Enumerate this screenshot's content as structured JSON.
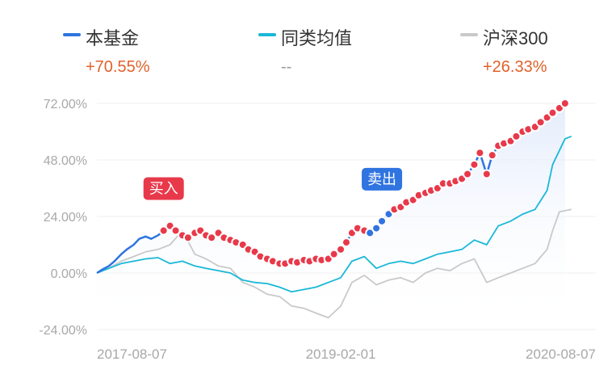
{
  "legend": {
    "fund": {
      "name": "本基金",
      "value": "+70.55%",
      "color": "#2f74e0"
    },
    "category_avg": {
      "name": "同类均值",
      "value": "--",
      "color": "#1ab8d8"
    },
    "index": {
      "name": "沪深300",
      "value": "+26.33%",
      "color": "#c9c9c9"
    }
  },
  "chart_data": {
    "type": "line",
    "x_range": [
      "2017-06-01",
      "2020-10-31"
    ],
    "x_ticks": [
      "2017-08-07",
      "2019-02-01",
      "2020-08-07"
    ],
    "y_ticks": [
      72,
      48,
      24,
      0,
      -24
    ],
    "y_tick_labels": [
      "72.00%",
      "48.00%",
      "24.00%",
      "0.00%",
      "-24.00%"
    ],
    "ylim": [
      -24,
      72
    ],
    "grid": true,
    "series": [
      {
        "name": "本基金",
        "color": "#2f74e0",
        "points": [
          [
            "2017-06-01",
            0
          ],
          [
            "2017-06-15",
            1.5
          ],
          [
            "2017-07-01",
            3
          ],
          [
            "2017-07-15",
            5
          ],
          [
            "2017-08-01",
            8
          ],
          [
            "2017-08-15",
            10
          ],
          [
            "2017-09-01",
            12
          ],
          [
            "2017-09-15",
            14.5
          ],
          [
            "2017-10-01",
            15.5
          ],
          [
            "2017-10-15",
            14.5
          ],
          [
            "2017-11-01",
            16
          ],
          [
            "2017-11-15",
            18
          ],
          [
            "2017-12-01",
            20
          ],
          [
            "2017-12-15",
            18
          ],
          [
            "2018-01-01",
            16
          ],
          [
            "2018-01-15",
            15
          ],
          [
            "2018-02-01",
            17
          ],
          [
            "2018-02-15",
            18
          ],
          [
            "2018-03-01",
            16
          ],
          [
            "2018-03-15",
            15
          ],
          [
            "2018-04-01",
            17
          ],
          [
            "2018-04-15",
            15
          ],
          [
            "2018-05-01",
            14
          ],
          [
            "2018-05-15",
            13
          ],
          [
            "2018-06-01",
            12
          ],
          [
            "2018-06-15",
            10
          ],
          [
            "2018-07-01",
            9
          ],
          [
            "2018-07-15",
            7
          ],
          [
            "2018-08-01",
            6
          ],
          [
            "2018-08-15",
            5
          ],
          [
            "2018-09-01",
            4
          ],
          [
            "2018-09-15",
            4
          ],
          [
            "2018-10-01",
            5
          ],
          [
            "2018-10-15",
            4.5
          ],
          [
            "2018-11-01",
            5.5
          ],
          [
            "2018-11-15",
            5
          ],
          [
            "2018-12-01",
            6
          ],
          [
            "2018-12-15",
            5.5
          ],
          [
            "2019-01-01",
            6
          ],
          [
            "2019-01-15",
            8
          ],
          [
            "2019-02-01",
            10
          ],
          [
            "2019-02-15",
            13
          ],
          [
            "2019-03-01",
            17
          ],
          [
            "2019-03-15",
            19
          ],
          [
            "2019-04-01",
            18
          ],
          [
            "2019-04-15",
            17
          ],
          [
            "2019-05-01",
            19
          ],
          [
            "2019-05-15",
            22
          ],
          [
            "2019-06-01",
            25
          ],
          [
            "2019-06-15",
            27
          ],
          [
            "2019-07-01",
            28
          ],
          [
            "2019-07-15",
            30
          ],
          [
            "2019-08-01",
            31
          ],
          [
            "2019-08-15",
            33
          ],
          [
            "2019-09-01",
            34
          ],
          [
            "2019-09-15",
            35
          ],
          [
            "2019-10-01",
            36
          ],
          [
            "2019-10-15",
            38
          ],
          [
            "2019-11-01",
            38
          ],
          [
            "2019-11-15",
            39
          ],
          [
            "2019-12-01",
            40
          ],
          [
            "2019-12-15",
            42
          ],
          [
            "2020-01-01",
            46
          ],
          [
            "2020-01-15",
            51
          ],
          [
            "2020-02-01",
            42
          ],
          [
            "2020-02-15",
            50
          ],
          [
            "2020-03-01",
            54
          ],
          [
            "2020-03-15",
            55
          ],
          [
            "2020-04-01",
            56
          ],
          [
            "2020-04-15",
            58
          ],
          [
            "2020-05-01",
            60
          ],
          [
            "2020-05-15",
            61
          ],
          [
            "2020-06-01",
            62
          ],
          [
            "2020-06-15",
            64
          ],
          [
            "2020-07-01",
            66
          ],
          [
            "2020-07-15",
            68
          ],
          [
            "2020-08-01",
            70
          ],
          [
            "2020-08-15",
            72
          ]
        ]
      },
      {
        "name": "同类均值",
        "color": "#1ab8d8",
        "points": [
          [
            "2017-06-01",
            0
          ],
          [
            "2017-07-01",
            2
          ],
          [
            "2017-08-01",
            4
          ],
          [
            "2017-09-01",
            5
          ],
          [
            "2017-10-01",
            6
          ],
          [
            "2017-11-01",
            6.5
          ],
          [
            "2017-12-01",
            4
          ],
          [
            "2018-01-01",
            5
          ],
          [
            "2018-02-01",
            3
          ],
          [
            "2018-03-01",
            2
          ],
          [
            "2018-04-01",
            1
          ],
          [
            "2018-05-01",
            0
          ],
          [
            "2018-06-01",
            -3
          ],
          [
            "2018-07-01",
            -4
          ],
          [
            "2018-08-01",
            -4.5
          ],
          [
            "2018-09-01",
            -6
          ],
          [
            "2018-10-01",
            -8
          ],
          [
            "2018-11-01",
            -7
          ],
          [
            "2018-12-01",
            -6
          ],
          [
            "2019-01-01",
            -4
          ],
          [
            "2019-02-01",
            -2
          ],
          [
            "2019-03-01",
            5
          ],
          [
            "2019-04-01",
            7
          ],
          [
            "2019-05-01",
            2
          ],
          [
            "2019-06-01",
            4
          ],
          [
            "2019-07-01",
            5
          ],
          [
            "2019-08-01",
            4
          ],
          [
            "2019-09-01",
            6
          ],
          [
            "2019-10-01",
            8
          ],
          [
            "2019-11-01",
            9
          ],
          [
            "2019-12-01",
            10
          ],
          [
            "2020-01-01",
            14
          ],
          [
            "2020-02-01",
            12
          ],
          [
            "2020-03-01",
            20
          ],
          [
            "2020-04-01",
            22
          ],
          [
            "2020-05-01",
            25
          ],
          [
            "2020-06-01",
            27
          ],
          [
            "2020-07-01",
            35
          ],
          [
            "2020-07-15",
            46
          ],
          [
            "2020-08-01",
            52
          ],
          [
            "2020-08-15",
            57
          ],
          [
            "2020-08-31",
            58
          ]
        ]
      },
      {
        "name": "沪深300",
        "color": "#c9c9c9",
        "points": [
          [
            "2017-06-01",
            0
          ],
          [
            "2017-07-01",
            2
          ],
          [
            "2017-08-01",
            5
          ],
          [
            "2017-09-01",
            7
          ],
          [
            "2017-10-01",
            9
          ],
          [
            "2017-11-01",
            10
          ],
          [
            "2017-12-01",
            12
          ],
          [
            "2018-01-01",
            18
          ],
          [
            "2018-02-01",
            8
          ],
          [
            "2018-03-01",
            6
          ],
          [
            "2018-04-01",
            3
          ],
          [
            "2018-05-01",
            2
          ],
          [
            "2018-06-01",
            -4
          ],
          [
            "2018-07-01",
            -6
          ],
          [
            "2018-08-01",
            -9
          ],
          [
            "2018-09-01",
            -10
          ],
          [
            "2018-10-01",
            -14
          ],
          [
            "2018-11-01",
            -15
          ],
          [
            "2018-12-01",
            -17
          ],
          [
            "2019-01-01",
            -19
          ],
          [
            "2019-02-01",
            -14
          ],
          [
            "2019-03-01",
            -4
          ],
          [
            "2019-04-01",
            -1
          ],
          [
            "2019-05-01",
            -5
          ],
          [
            "2019-06-01",
            -3
          ],
          [
            "2019-07-01",
            -2
          ],
          [
            "2019-08-01",
            -4
          ],
          [
            "2019-09-01",
            0
          ],
          [
            "2019-10-01",
            2
          ],
          [
            "2019-11-01",
            1
          ],
          [
            "2019-12-01",
            4
          ],
          [
            "2020-01-01",
            6
          ],
          [
            "2020-02-01",
            -4
          ],
          [
            "2020-03-01",
            -2
          ],
          [
            "2020-04-01",
            0
          ],
          [
            "2020-05-01",
            2
          ],
          [
            "2020-06-01",
            4
          ],
          [
            "2020-07-01",
            10
          ],
          [
            "2020-07-15",
            18
          ],
          [
            "2020-08-01",
            26
          ],
          [
            "2020-08-31",
            27
          ]
        ]
      }
    ],
    "annotations": [
      {
        "text": "买入",
        "date": "2017-11-15",
        "color": "#e8394a"
      },
      {
        "text": "卖出",
        "date": "2019-05-15",
        "color": "#2f74e0"
      }
    ]
  }
}
